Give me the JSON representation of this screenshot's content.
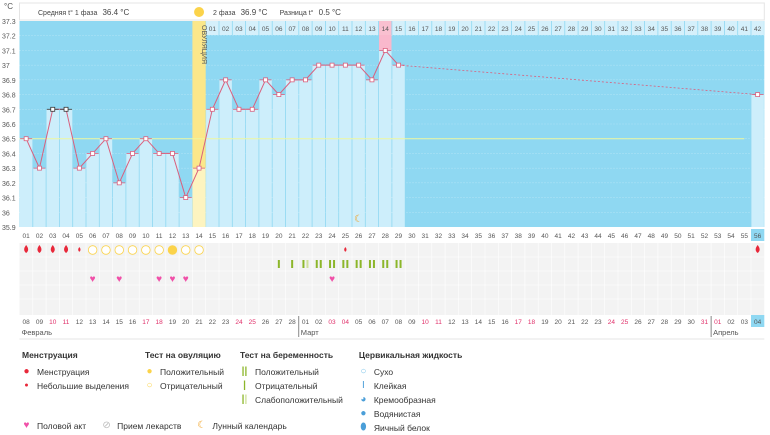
{
  "axis": {
    "unit": "°C",
    "ticks": [
      "37.3",
      "37.2",
      "37.1",
      "37",
      "36.9",
      "36.8",
      "36.7",
      "36.6",
      "36.5",
      "36.4",
      "36.3",
      "36.2",
      "36.1",
      "36",
      "35.9"
    ],
    "ymin": 35.9,
    "ymax": 37.3
  },
  "info": {
    "phase1_label": "Средняя t° 1 фаза",
    "phase1_value": "36.4 °C",
    "phase2_label": "2 фаза",
    "phase2_value": "36.9 °C",
    "diff_label": "Разница t°",
    "diff_value": "0.5 °C"
  },
  "ovulation": {
    "label": "ОВУЛЯЦИЯ",
    "day": 14
  },
  "cycle_days": 56,
  "today_day": 56,
  "post_ovulation_highlight": 14,
  "temperatures": [
    {
      "day": 1,
      "t": 36.5
    },
    {
      "day": 2,
      "t": 36.3
    },
    {
      "day": 3,
      "t": 36.7,
      "excluded": true
    },
    {
      "day": 4,
      "t": 36.7,
      "excluded": true
    },
    {
      "day": 5,
      "t": 36.3
    },
    {
      "day": 6,
      "t": 36.4
    },
    {
      "day": 7,
      "t": 36.5
    },
    {
      "day": 8,
      "t": 36.2
    },
    {
      "day": 9,
      "t": 36.4
    },
    {
      "day": 10,
      "t": 36.5
    },
    {
      "day": 11,
      "t": 36.4
    },
    {
      "day": 12,
      "t": 36.4
    },
    {
      "day": 13,
      "t": 36.1
    },
    {
      "day": 14,
      "t": 36.3
    },
    {
      "day": 15,
      "t": 36.7
    },
    {
      "day": 16,
      "t": 36.9
    },
    {
      "day": 17,
      "t": 36.7
    },
    {
      "day": 18,
      "t": 36.7
    },
    {
      "day": 19,
      "t": 36.9
    },
    {
      "day": 20,
      "t": 36.8
    },
    {
      "day": 21,
      "t": 36.9
    },
    {
      "day": 22,
      "t": 36.9
    },
    {
      "day": 23,
      "t": 37.0
    },
    {
      "day": 24,
      "t": 37.0
    },
    {
      "day": 25,
      "t": 37.0
    },
    {
      "day": 26,
      "t": 37.0
    },
    {
      "day": 27,
      "t": 36.9
    },
    {
      "day": 28,
      "t": 37.1
    },
    {
      "day": 29,
      "t": 37.0
    },
    {
      "day": 56,
      "t": 36.8
    }
  ],
  "coverline": 36.5,
  "moon_day": 26,
  "menstruation": [
    {
      "day": 1,
      "type": "full"
    },
    {
      "day": 2,
      "type": "full"
    },
    {
      "day": 3,
      "type": "full"
    },
    {
      "day": 4,
      "type": "full"
    },
    {
      "day": 5,
      "type": "light"
    },
    {
      "day": 25,
      "type": "light"
    },
    {
      "day": 56,
      "type": "full"
    }
  ],
  "ovulation_tests": [
    {
      "day": 6,
      "r": "neg"
    },
    {
      "day": 7,
      "r": "neg"
    },
    {
      "day": 8,
      "r": "neg"
    },
    {
      "day": 9,
      "r": "neg"
    },
    {
      "day": 10,
      "r": "neg"
    },
    {
      "day": 11,
      "r": "neg"
    },
    {
      "day": 12,
      "r": "pos"
    },
    {
      "day": 13,
      "r": "neg"
    },
    {
      "day": 14,
      "r": "neg"
    }
  ],
  "pregnancy_tests": [
    {
      "day": 20,
      "r": "neg"
    },
    {
      "day": 21,
      "r": "neg"
    },
    {
      "day": 22,
      "r": "weak"
    },
    {
      "day": 23,
      "r": "pos"
    },
    {
      "day": 24,
      "r": "pos"
    },
    {
      "day": 25,
      "r": "pos"
    },
    {
      "day": 26,
      "r": "pos"
    },
    {
      "day": 27,
      "r": "pos"
    },
    {
      "day": 28,
      "r": "pos"
    },
    {
      "day": 29,
      "r": "pos"
    }
  ],
  "intercourse_days": [
    6,
    8,
    11,
    12,
    13,
    24
  ],
  "dates": [
    "08",
    "09",
    "10",
    "11",
    "12",
    "13",
    "14",
    "15",
    "16",
    "17",
    "18",
    "19",
    "20",
    "21",
    "22",
    "23",
    "24",
    "25",
    "26",
    "27",
    "28",
    "01",
    "02",
    "03",
    "04",
    "05",
    "06",
    "07",
    "08",
    "09",
    "10",
    "11",
    "12",
    "13",
    "14",
    "15",
    "16",
    "17",
    "18",
    "19",
    "20",
    "21",
    "22",
    "23",
    "24",
    "25",
    "26",
    "27",
    "28",
    "29",
    "30",
    "31",
    "01",
    "02",
    "03",
    "04"
  ],
  "weekend_idx": [
    2,
    3,
    9,
    10,
    16,
    17,
    23,
    24,
    30,
    31,
    37,
    38,
    44,
    45,
    51,
    52
  ],
  "months": [
    {
      "label": "Февраль",
      "start": 1
    },
    {
      "label": "Март",
      "start": 22
    },
    {
      "label": "Апрель",
      "start": 53
    }
  ],
  "colors": {
    "sky": "#8fd8f2",
    "bar": "#cdeefb",
    "line": "#d9607e",
    "ovulation": "#fbe78a",
    "blood": "#e8283a",
    "heart": "#f050a8",
    "test": "#8cb62a",
    "today": "#8fd8f2"
  },
  "legend": {
    "menstruation": {
      "title": "Менструация",
      "items": [
        "Менструация",
        "Небольшие выделения"
      ]
    },
    "ovulation_test": {
      "title": "Тест на овуляцию",
      "items": [
        "Положительный",
        "Отрицательный"
      ]
    },
    "pregnancy_test": {
      "title": "Тест на беременность",
      "items": [
        "Положительный",
        "Отрицательный",
        "Слабоположительный"
      ]
    },
    "cervical": {
      "title": "Цервикальная жидкость",
      "items": [
        "Сухо",
        "Клейкая",
        "Кремообразная",
        "Водянистая",
        "Яичный белок"
      ]
    },
    "other": [
      "Половой акт",
      "Прием лекарств",
      "Лунный календарь"
    ]
  }
}
